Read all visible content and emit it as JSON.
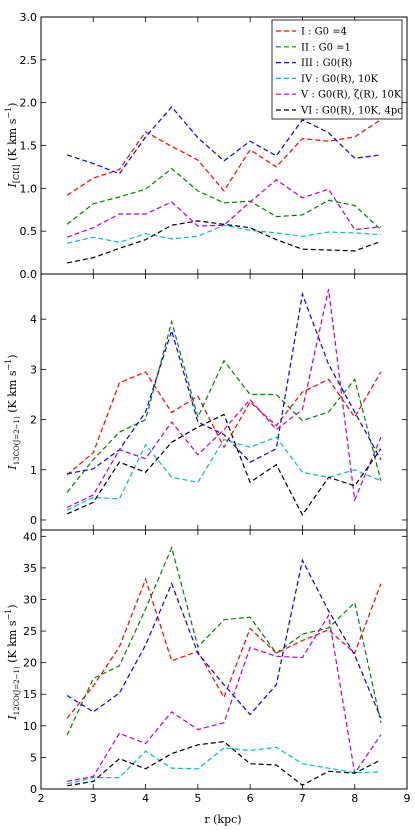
{
  "figure": {
    "xlabel": "r (kpc)",
    "xlim": [
      2,
      9
    ],
    "xticks": [
      2,
      3,
      4,
      5,
      6,
      7,
      8,
      9
    ]
  },
  "series_styles": [
    {
      "key": "I",
      "color": "#ff0000"
    },
    {
      "key": "II",
      "color": "#008000"
    },
    {
      "key": "III",
      "color": "#0000ff"
    },
    {
      "key": "IV",
      "color": "#00bfbf"
    },
    {
      "key": "V",
      "color": "#bf00bf"
    },
    {
      "key": "VI",
      "color": "#000000"
    }
  ],
  "chart_data": [
    {
      "type": "line",
      "ylabel": "I_[CII] (K km s^-1)",
      "ylim": [
        0,
        3.0
      ],
      "yticks": [
        0.0,
        0.5,
        1.0,
        1.5,
        2.0,
        2.5,
        3.0
      ],
      "ytick_labels": [
        "0.0",
        "0.5",
        "1.0",
        "1.5",
        "2.0",
        "2.5",
        "3.0"
      ],
      "x": [
        2.5,
        3.0,
        3.5,
        4.0,
        4.5,
        5.0,
        5.5,
        6.0,
        6.5,
        7.0,
        7.5,
        8.0,
        8.5
      ],
      "legend_position": "top-right",
      "series": [
        {
          "name": "I : G0 =4",
          "values": [
            0.92,
            1.12,
            1.22,
            1.66,
            1.49,
            1.33,
            0.97,
            1.45,
            1.25,
            1.58,
            1.55,
            1.6,
            1.8
          ]
        },
        {
          "name": "II : G0 =1",
          "values": [
            0.58,
            0.82,
            0.9,
            0.99,
            1.23,
            0.97,
            0.83,
            0.85,
            0.67,
            0.69,
            0.86,
            0.8,
            0.52
          ]
        },
        {
          "name": "III : G0(R)",
          "values": [
            1.39,
            1.29,
            1.17,
            1.6,
            1.95,
            1.59,
            1.32,
            1.55,
            1.38,
            1.8,
            1.65,
            1.35,
            1.39
          ]
        },
        {
          "name": "IV : G0(R), 10K",
          "values": [
            0.36,
            0.43,
            0.37,
            0.47,
            0.41,
            0.44,
            0.57,
            0.51,
            0.48,
            0.44,
            0.49,
            0.48,
            0.46
          ]
        },
        {
          "name": "V : G0(R), ζ(R), 10K",
          "values": [
            0.43,
            0.54,
            0.7,
            0.7,
            0.84,
            0.56,
            0.57,
            0.84,
            1.1,
            0.89,
            0.99,
            0.52,
            0.55
          ]
        },
        {
          "name": "VI : G0(R), 10K, 4pc",
          "values": [
            0.13,
            0.19,
            0.3,
            0.4,
            0.57,
            0.62,
            0.58,
            0.54,
            0.4,
            0.29,
            0.28,
            0.27,
            0.38
          ]
        }
      ]
    },
    {
      "type": "line",
      "ylabel": "I_13CO(J=2-1) (K km s^-1)",
      "ylim": [
        -0.2,
        4.9
      ],
      "yticks": [
        0,
        1,
        2,
        3,
        4
      ],
      "ytick_labels": [
        "0",
        "1",
        "2",
        "3",
        "4"
      ],
      "x": [
        2.5,
        3.0,
        3.5,
        4.0,
        4.5,
        5.0,
        5.5,
        6.0,
        6.5,
        7.0,
        7.5,
        8.0,
        8.5
      ],
      "series": [
        {
          "name": "I",
          "values": [
            0.9,
            1.34,
            2.73,
            2.95,
            2.14,
            2.47,
            1.45,
            2.35,
            1.88,
            2.55,
            2.8,
            2.05,
            2.95
          ]
        },
        {
          "name": "II",
          "values": [
            0.55,
            1.2,
            1.75,
            2.0,
            3.95,
            2.05,
            3.17,
            2.5,
            2.5,
            1.98,
            2.15,
            2.8,
            0.78
          ]
        },
        {
          "name": "III",
          "values": [
            0.92,
            1.02,
            1.4,
            2.15,
            3.77,
            1.95,
            1.7,
            1.15,
            1.42,
            4.5,
            3.1,
            2.15,
            1.2
          ]
        },
        {
          "name": "IV",
          "values": [
            0.2,
            0.45,
            0.42,
            1.5,
            0.85,
            0.75,
            1.6,
            1.45,
            1.65,
            0.95,
            0.85,
            1.0,
            0.78
          ]
        },
        {
          "name": "V",
          "values": [
            0.25,
            0.5,
            1.4,
            1.22,
            1.95,
            1.3,
            1.8,
            2.4,
            1.8,
            2.2,
            4.6,
            0.4,
            1.65
          ]
        },
        {
          "name": "VI",
          "values": [
            0.12,
            0.35,
            1.15,
            0.95,
            1.55,
            1.85,
            2.1,
            0.75,
            1.1,
            0.1,
            0.85,
            0.68,
            1.42
          ]
        }
      ]
    },
    {
      "type": "line",
      "ylabel": "I_12CO(J=2-1) (K km s^-1)",
      "ylim": [
        0,
        41
      ],
      "yticks": [
        0,
        5,
        10,
        15,
        20,
        25,
        30,
        35,
        40
      ],
      "ytick_labels": [
        "0",
        "5",
        "10",
        "15",
        "20",
        "25",
        "30",
        "35",
        "40"
      ],
      "x": [
        2.5,
        3.0,
        3.5,
        4.0,
        4.5,
        5.0,
        5.5,
        6.0,
        6.5,
        7.0,
        7.5,
        8.0,
        8.5
      ],
      "series": [
        {
          "name": "I",
          "values": [
            11.2,
            16.3,
            22.5,
            33.2,
            20.3,
            21.8,
            14.5,
            25.4,
            21.5,
            23.5,
            25.2,
            21.5,
            32.5
          ]
        },
        {
          "name": "II",
          "values": [
            8.5,
            17.5,
            19.5,
            28.5,
            38.2,
            22.5,
            26.8,
            27.2,
            21.5,
            24.5,
            25.5,
            29.5,
            10.5
          ]
        },
        {
          "name": "III",
          "values": [
            14.8,
            12.2,
            15.2,
            22.8,
            32.5,
            21.5,
            16.5,
            11.8,
            16.5,
            36.2,
            28.2,
            21.2,
            11.2
          ]
        },
        {
          "name": "IV",
          "values": [
            0.8,
            1.8,
            1.8,
            6.0,
            3.3,
            3.2,
            6.5,
            6.1,
            6.6,
            4.0,
            3.3,
            2.6,
            2.7
          ]
        },
        {
          "name": "V",
          "values": [
            1.2,
            2.0,
            8.8,
            7.2,
            12.2,
            9.4,
            10.5,
            22.4,
            21.0,
            20.8,
            27.5,
            2.5,
            8.6
          ]
        },
        {
          "name": "VI",
          "values": [
            0.5,
            1.2,
            4.8,
            3.2,
            5.6,
            7.0,
            7.5,
            4.0,
            3.8,
            0.6,
            2.8,
            2.5,
            4.6
          ]
        }
      ]
    }
  ]
}
